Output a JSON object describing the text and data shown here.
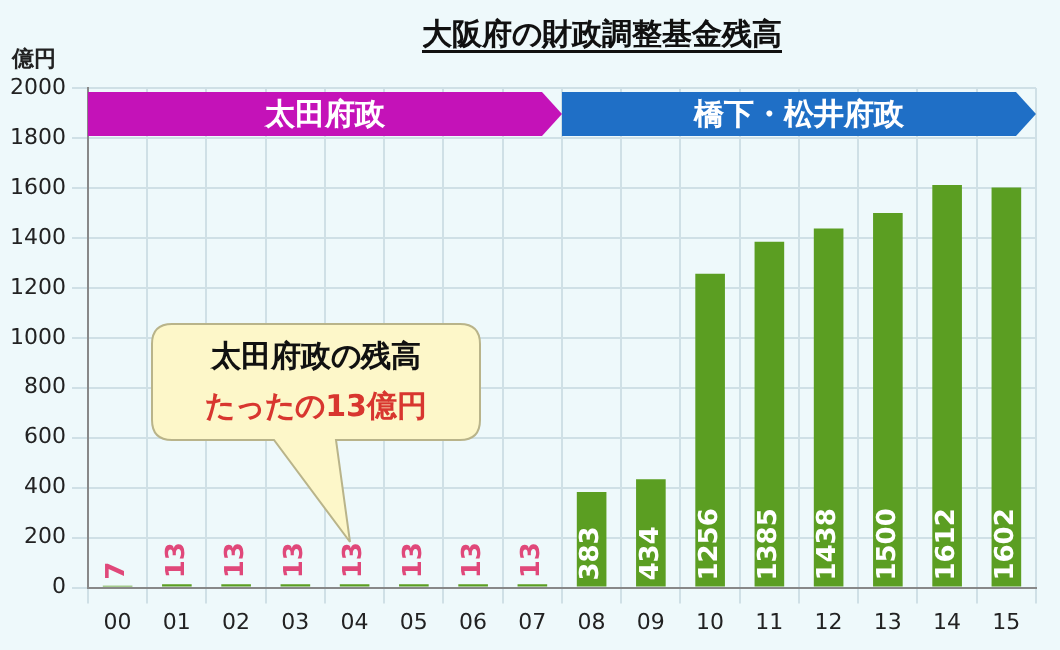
{
  "chart_data": {
    "type": "bar",
    "title": "大阪府の財政調整基金残高",
    "ylabel": "億円",
    "categories": [
      "00",
      "01",
      "02",
      "03",
      "04",
      "05",
      "06",
      "07",
      "08",
      "09",
      "10",
      "11",
      "12",
      "13",
      "14",
      "15"
    ],
    "values": [
      7,
      13,
      13,
      13,
      13,
      13,
      13,
      13,
      383,
      434,
      1256,
      1385,
      1438,
      1500,
      1612,
      1602
    ],
    "color": "#5b9e22",
    "ylim": [
      0,
      2000
    ],
    "yticks": [
      0,
      200,
      400,
      600,
      800,
      1000,
      1200,
      1400,
      1600,
      1800,
      2000
    ],
    "grid": true,
    "data_labels": true,
    "bands": [
      {
        "axis": "x",
        "from": "00",
        "to": "07",
        "label": "太田府政",
        "color": "#c412b8"
      },
      {
        "axis": "x",
        "from": "08",
        "to": "15",
        "label": "橋下・松井府政",
        "color": "#1f6fc6"
      }
    ],
    "annotations": [
      "太田府政の残高",
      "たったの13億円"
    ]
  }
}
